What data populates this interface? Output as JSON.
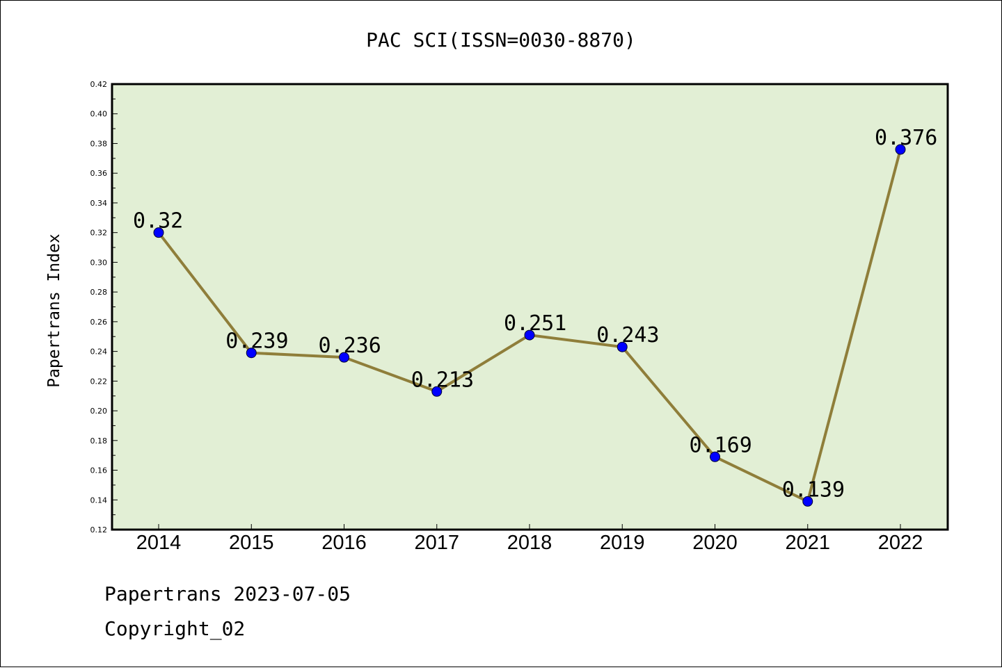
{
  "chart_data": {
    "type": "line",
    "title": "PAC SCI(ISSN=0030-8870)",
    "xlabel": "",
    "ylabel": "Papertrans Index",
    "categories": [
      "2014",
      "2015",
      "2016",
      "2017",
      "2018",
      "2019",
      "2020",
      "2021",
      "2022"
    ],
    "values": [
      0.32,
      0.239,
      0.236,
      0.213,
      0.251,
      0.243,
      0.169,
      0.139,
      0.376
    ],
    "data_labels": [
      "0.32",
      "0.239",
      "0.236",
      "0.213",
      "0.251",
      "0.243",
      "0.169",
      "0.139",
      "0.376"
    ],
    "yticks": [
      "0.12",
      "0.14",
      "0.16",
      "0.18",
      "0.20",
      "0.22",
      "0.24",
      "0.26",
      "0.28",
      "0.30",
      "0.32",
      "0.34",
      "0.36",
      "0.38",
      "0.40",
      "0.42"
    ],
    "ylim": [
      0.12,
      0.42
    ],
    "grid": false,
    "colors": {
      "plot_background": "#e2efd5",
      "line": "#8f7e3a",
      "marker": "#0000ff"
    }
  },
  "footer": {
    "date_line": "Papertrans 2023-07-05",
    "copyright": "Copyright_02"
  }
}
